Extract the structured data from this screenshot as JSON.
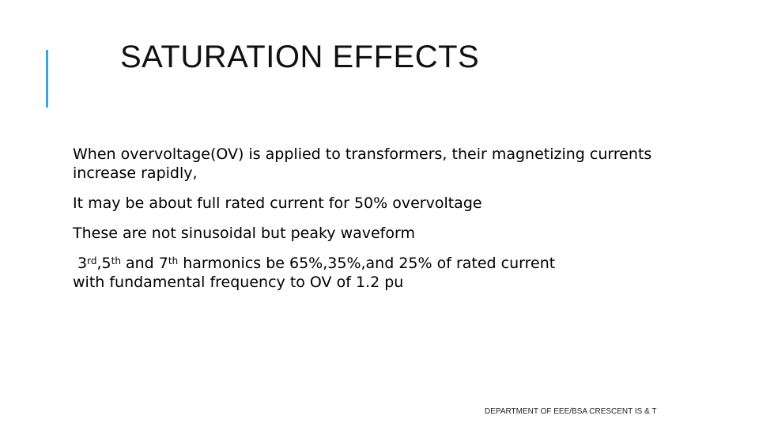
{
  "slide": {
    "title": "SATURATION EFFECTS",
    "accent_color": "#3aa6d9",
    "paragraphs": [
      "When overvoltage(OV) is applied to transformers, their magnetizing currents increase rapidly,",
      "It may be about full rated current for 50% overvoltage",
      "These are not sinusoidal but peaky waveform"
    ],
    "harmonics_paragraph": {
      "h1": "3",
      "h1_sup": "rd",
      "sep1": ",",
      "h2": "5",
      "h2_sup": "th",
      "and": " and ",
      "h3": "7",
      "h3_sup": "th",
      "rest_line1": " harmonics be 65%,35%,and 25% of rated current",
      "rest_line2": "with fundamental frequency to OV of 1.2 pu"
    },
    "footer": "DEPARTMENT OF EEE/BSA CRESCENT IS & T"
  }
}
